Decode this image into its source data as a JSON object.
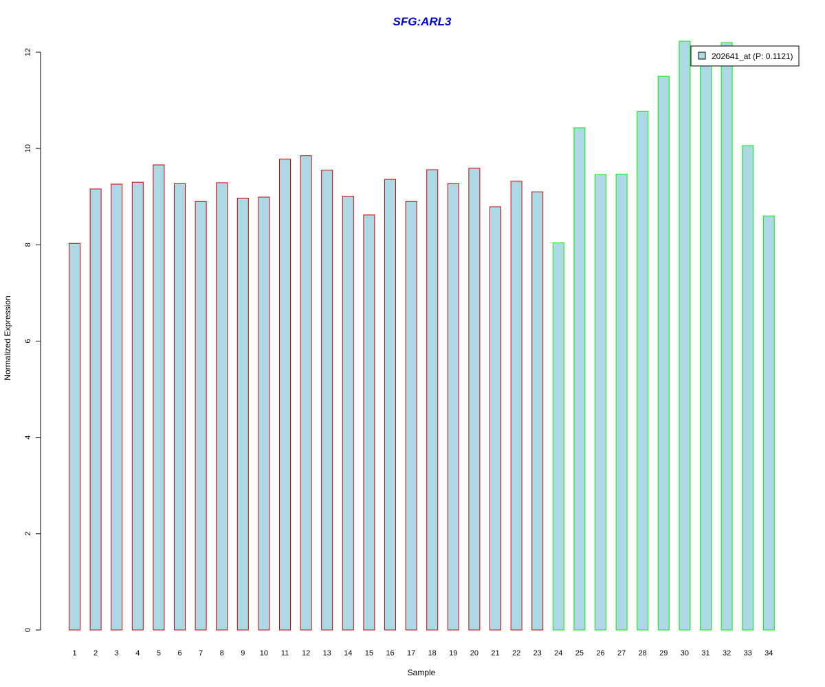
{
  "chart_data": {
    "type": "bar",
    "title": "SFG:ARL3",
    "xlabel": "Sample",
    "ylabel": "Normalized Expression",
    "ylim": [
      0,
      12.4
    ],
    "yticks": [
      0,
      2,
      4,
      6,
      8,
      10,
      12
    ],
    "grid": false,
    "legend_position": "top-right",
    "fill_color": "#add8e6",
    "categories": [
      "1",
      "2",
      "3",
      "4",
      "5",
      "6",
      "7",
      "8",
      "9",
      "10",
      "11",
      "12",
      "13",
      "14",
      "15",
      "16",
      "17",
      "18",
      "19",
      "20",
      "21",
      "22",
      "23",
      "24",
      "25",
      "26",
      "27",
      "28",
      "29",
      "30",
      "31",
      "32",
      "33",
      "34"
    ],
    "values": [
      8.03,
      9.16,
      9.26,
      9.3,
      9.66,
      9.27,
      8.9,
      9.29,
      8.97,
      8.99,
      9.78,
      9.85,
      9.55,
      9.01,
      8.62,
      9.36,
      8.9,
      9.56,
      9.27,
      9.59,
      8.79,
      9.32,
      9.1,
      8.04,
      10.43,
      9.46,
      9.47,
      10.77,
      11.5,
      12.23,
      11.82,
      12.2,
      10.06,
      8.6
    ],
    "groups": [
      {
        "samples": "1-23",
        "border_color": "#cc0000"
      },
      {
        "samples": "24-34",
        "border_color": "#00ee00"
      }
    ],
    "legend": {
      "label": "202641_at (P: 0.1121)",
      "swatch_color": "#add8e6"
    }
  }
}
